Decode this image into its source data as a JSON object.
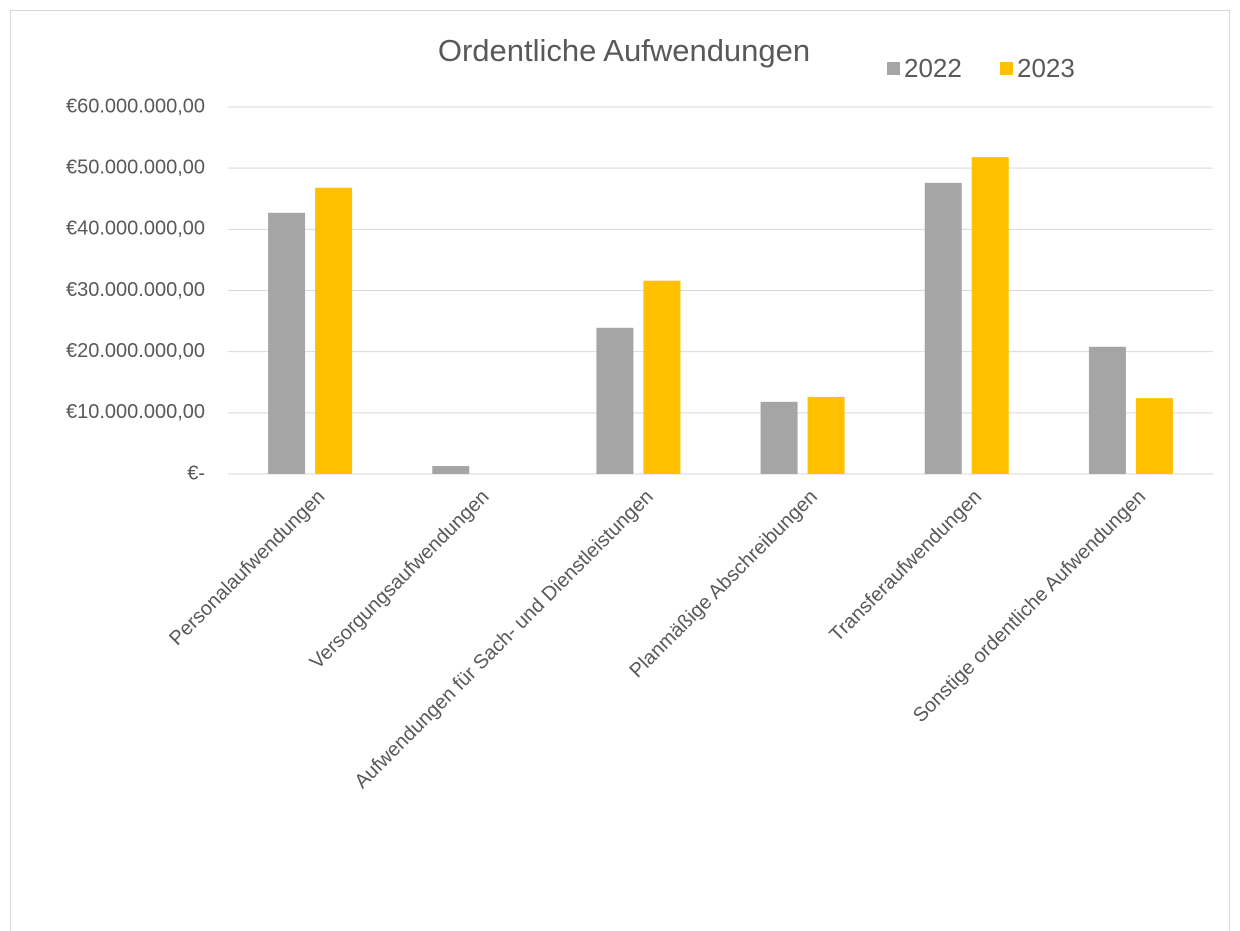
{
  "chart_data": {
    "type": "bar",
    "title": "Ordentliche Aufwendungen",
    "categories": [
      "Personalaufwendungen",
      "Versorgungsaufwendungen",
      "Aufwendungen für Sach- und Dienstleistungen",
      "Planmäßige Abschreibungen",
      "Transferaufwendungen",
      "Sonstige ordentliche Aufwendungen"
    ],
    "series": [
      {
        "name": "2022",
        "color": "#a5a5a5",
        "values": [
          42700000,
          1300000,
          23900000,
          11800000,
          47600000,
          20800000
        ]
      },
      {
        "name": "2023",
        "color": "#ffc000",
        "values": [
          46800000,
          0,
          31600000,
          12600000,
          51800000,
          12400000
        ]
      }
    ],
    "ylim": [
      0,
      60000000
    ],
    "yticks": [
      {
        "value": 0,
        "label": "€-"
      },
      {
        "value": 10000000,
        "label": "€10.000.000,00"
      },
      {
        "value": 20000000,
        "label": "€20.000.000,00"
      },
      {
        "value": 30000000,
        "label": "€30.000.000,00"
      },
      {
        "value": 40000000,
        "label": "€40.000.000,00"
      },
      {
        "value": 50000000,
        "label": "€50.000.000,00"
      },
      {
        "value": 60000000,
        "label": "€60.000.000,00"
      }
    ],
    "grid": true,
    "legend": "top"
  }
}
